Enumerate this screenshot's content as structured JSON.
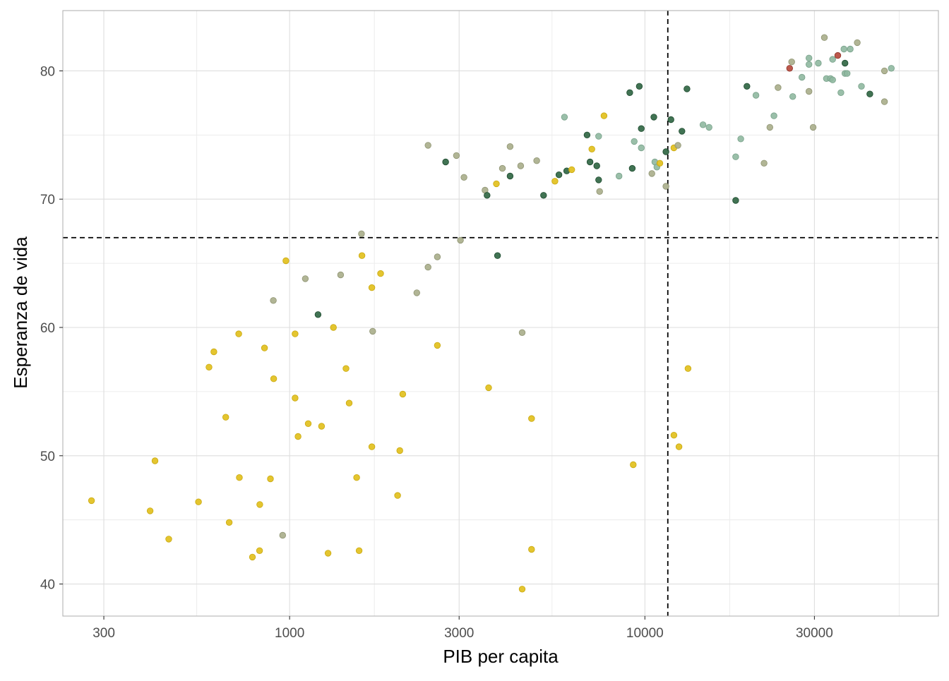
{
  "chart_data": {
    "type": "scatter",
    "xlabel": "PIB per capita",
    "ylabel": "Esperanza de vida",
    "x_scale": "log10",
    "xlim": [
      230,
      67000
    ],
    "ylim": [
      37.5,
      84.7
    ],
    "x_ticks": [
      300,
      1000,
      3000,
      10000,
      30000
    ],
    "x_tick_labels": [
      "300",
      "1000",
      "3000",
      "10000",
      "30000"
    ],
    "y_ticks": [
      40,
      50,
      60,
      70,
      80
    ],
    "y_tick_labels": [
      "40",
      "50",
      "60",
      "70",
      "80"
    ],
    "grid": true,
    "reference_lines": {
      "x": 11600,
      "y": 67.0
    },
    "colors": {
      "gold": "#e1bf18",
      "olive": "#a8ad8a",
      "sage": "#8fb8a0",
      "dark": "#2c6440",
      "red": "#b5473a"
    },
    "points": [
      {
        "x": 277,
        "y": 46.5,
        "c": "gold"
      },
      {
        "x": 405,
        "y": 45.7,
        "c": "gold"
      },
      {
        "x": 418,
        "y": 49.6,
        "c": "gold"
      },
      {
        "x": 457,
        "y": 43.5,
        "c": "gold"
      },
      {
        "x": 554,
        "y": 46.4,
        "c": "gold"
      },
      {
        "x": 593,
        "y": 56.9,
        "c": "gold"
      },
      {
        "x": 612,
        "y": 58.1,
        "c": "gold"
      },
      {
        "x": 661,
        "y": 53.0,
        "c": "gold"
      },
      {
        "x": 676,
        "y": 44.8,
        "c": "gold"
      },
      {
        "x": 719,
        "y": 59.5,
        "c": "gold"
      },
      {
        "x": 722,
        "y": 48.3,
        "c": "gold"
      },
      {
        "x": 786,
        "y": 42.1,
        "c": "gold"
      },
      {
        "x": 823,
        "y": 42.6,
        "c": "gold"
      },
      {
        "x": 824,
        "y": 46.2,
        "c": "gold"
      },
      {
        "x": 850,
        "y": 58.4,
        "c": "gold"
      },
      {
        "x": 883,
        "y": 48.2,
        "c": "gold"
      },
      {
        "x": 902,
        "y": 56.0,
        "c": "gold"
      },
      {
        "x": 900,
        "y": 62.1,
        "c": "olive"
      },
      {
        "x": 956,
        "y": 43.8,
        "c": "olive"
      },
      {
        "x": 976,
        "y": 65.2,
        "c": "gold"
      },
      {
        "x": 1036,
        "y": 59.5,
        "c": "gold"
      },
      {
        "x": 1036,
        "y": 54.5,
        "c": "gold"
      },
      {
        "x": 1056,
        "y": 51.5,
        "c": "gold"
      },
      {
        "x": 1107,
        "y": 63.8,
        "c": "olive"
      },
      {
        "x": 1128,
        "y": 52.5,
        "c": "gold"
      },
      {
        "x": 1202,
        "y": 61.0,
        "c": "dark"
      },
      {
        "x": 1230,
        "y": 52.3,
        "c": "gold"
      },
      {
        "x": 1283,
        "y": 42.4,
        "c": "gold"
      },
      {
        "x": 1328,
        "y": 60.0,
        "c": "gold"
      },
      {
        "x": 1392,
        "y": 64.1,
        "c": "olive"
      },
      {
        "x": 1441,
        "y": 56.8,
        "c": "gold"
      },
      {
        "x": 1471,
        "y": 54.1,
        "c": "gold"
      },
      {
        "x": 1544,
        "y": 48.3,
        "c": "gold"
      },
      {
        "x": 1569,
        "y": 42.6,
        "c": "gold"
      },
      {
        "x": 1593,
        "y": 67.3,
        "c": "olive"
      },
      {
        "x": 1598,
        "y": 65.6,
        "c": "gold"
      },
      {
        "x": 1704,
        "y": 63.1,
        "c": "gold"
      },
      {
        "x": 1704,
        "y": 50.7,
        "c": "gold"
      },
      {
        "x": 1713,
        "y": 59.7,
        "c": "olive"
      },
      {
        "x": 1803,
        "y": 64.2,
        "c": "gold"
      },
      {
        "x": 2013,
        "y": 46.9,
        "c": "gold"
      },
      {
        "x": 2042,
        "y": 50.4,
        "c": "gold"
      },
      {
        "x": 2082,
        "y": 54.8,
        "c": "gold"
      },
      {
        "x": 2280,
        "y": 62.7,
        "c": "olive"
      },
      {
        "x": 2452,
        "y": 74.2,
        "c": "olive"
      },
      {
        "x": 2452,
        "y": 64.7,
        "c": "olive"
      },
      {
        "x": 2605,
        "y": 65.5,
        "c": "olive"
      },
      {
        "x": 2605,
        "y": 58.6,
        "c": "gold"
      },
      {
        "x": 2749,
        "y": 72.9,
        "c": "dark"
      },
      {
        "x": 2948,
        "y": 73.4,
        "c": "olive"
      },
      {
        "x": 3025,
        "y": 66.8,
        "c": "olive"
      },
      {
        "x": 3095,
        "y": 71.7,
        "c": "olive"
      },
      {
        "x": 3548,
        "y": 70.7,
        "c": "olive"
      },
      {
        "x": 3596,
        "y": 70.3,
        "c": "dark"
      },
      {
        "x": 3632,
        "y": 55.3,
        "c": "gold"
      },
      {
        "x": 3820,
        "y": 71.2,
        "c": "gold"
      },
      {
        "x": 3848,
        "y": 65.6,
        "c": "dark"
      },
      {
        "x": 3970,
        "y": 72.4,
        "c": "olive"
      },
      {
        "x": 4173,
        "y": 71.8,
        "c": "dark"
      },
      {
        "x": 4173,
        "y": 74.1,
        "c": "olive"
      },
      {
        "x": 4471,
        "y": 72.6,
        "c": "olive"
      },
      {
        "x": 4513,
        "y": 39.6,
        "c": "gold"
      },
      {
        "x": 4513,
        "y": 59.6,
        "c": "olive"
      },
      {
        "x": 4797,
        "y": 52.9,
        "c": "gold"
      },
      {
        "x": 4797,
        "y": 42.7,
        "c": "gold"
      },
      {
        "x": 4959,
        "y": 73.0,
        "c": "olive"
      },
      {
        "x": 5186,
        "y": 70.3,
        "c": "dark"
      },
      {
        "x": 5581,
        "y": 71.4,
        "c": "gold"
      },
      {
        "x": 5728,
        "y": 71.9,
        "c": "dark"
      },
      {
        "x": 5938,
        "y": 76.4,
        "c": "sage"
      },
      {
        "x": 6025,
        "y": 72.2,
        "c": "dark"
      },
      {
        "x": 6223,
        "y": 72.3,
        "c": "gold"
      },
      {
        "x": 6873,
        "y": 75.0,
        "c": "dark"
      },
      {
        "x": 7006,
        "y": 72.9,
        "c": "dark"
      },
      {
        "x": 7092,
        "y": 73.9,
        "c": "gold"
      },
      {
        "x": 7320,
        "y": 72.6,
        "c": "dark"
      },
      {
        "x": 7408,
        "y": 74.9,
        "c": "sage"
      },
      {
        "x": 7408,
        "y": 71.5,
        "c": "dark"
      },
      {
        "x": 7458,
        "y": 70.6,
        "c": "olive"
      },
      {
        "x": 7670,
        "y": 76.5,
        "c": "gold"
      },
      {
        "x": 8458,
        "y": 71.8,
        "c": "sage"
      },
      {
        "x": 9065,
        "y": 78.3,
        "c": "dark"
      },
      {
        "x": 9210,
        "y": 72.4,
        "c": "dark"
      },
      {
        "x": 9269,
        "y": 49.3,
        "c": "gold"
      },
      {
        "x": 9331,
        "y": 74.5,
        "c": "sage"
      },
      {
        "x": 9645,
        "y": 78.8,
        "c": "dark"
      },
      {
        "x": 9769,
        "y": 75.5,
        "c": "dark"
      },
      {
        "x": 9769,
        "y": 74.0,
        "c": "sage"
      },
      {
        "x": 10461,
        "y": 72.0,
        "c": "olive"
      },
      {
        "x": 10597,
        "y": 76.4,
        "c": "dark"
      },
      {
        "x": 10667,
        "y": 72.9,
        "c": "sage"
      },
      {
        "x": 10806,
        "y": 72.5,
        "c": "sage"
      },
      {
        "x": 11018,
        "y": 72.8,
        "c": "gold"
      },
      {
        "x": 11458,
        "y": 73.7,
        "c": "dark"
      },
      {
        "x": 11458,
        "y": 71.0,
        "c": "olive"
      },
      {
        "x": 11835,
        "y": 76.2,
        "c": "dark"
      },
      {
        "x": 12068,
        "y": 74.0,
        "c": "gold"
      },
      {
        "x": 12068,
        "y": 51.6,
        "c": "gold"
      },
      {
        "x": 12387,
        "y": 74.2,
        "c": "olive"
      },
      {
        "x": 12469,
        "y": 50.7,
        "c": "gold"
      },
      {
        "x": 12715,
        "y": 75.3,
        "c": "dark"
      },
      {
        "x": 13135,
        "y": 78.6,
        "c": "dark"
      },
      {
        "x": 13222,
        "y": 56.8,
        "c": "gold"
      },
      {
        "x": 14570,
        "y": 75.8,
        "c": "sage"
      },
      {
        "x": 15155,
        "y": 75.6,
        "c": "sage"
      },
      {
        "x": 18009,
        "y": 73.3,
        "c": "sage"
      },
      {
        "x": 18009,
        "y": 69.9,
        "c": "dark"
      },
      {
        "x": 18615,
        "y": 74.7,
        "c": "sage"
      },
      {
        "x": 19365,
        "y": 78.8,
        "c": "dark"
      },
      {
        "x": 20537,
        "y": 78.1,
        "c": "sage"
      },
      {
        "x": 21645,
        "y": 72.8,
        "c": "olive"
      },
      {
        "x": 22478,
        "y": 75.6,
        "c": "olive"
      },
      {
        "x": 23079,
        "y": 76.5,
        "c": "sage"
      },
      {
        "x": 23695,
        "y": 78.7,
        "c": "olive"
      },
      {
        "x": 25549,
        "y": 80.2,
        "c": "red"
      },
      {
        "x": 25890,
        "y": 80.7,
        "c": "olive"
      },
      {
        "x": 26066,
        "y": 78.0,
        "c": "sage"
      },
      {
        "x": 27659,
        "y": 79.5,
        "c": "sage"
      },
      {
        "x": 28965,
        "y": 80.5,
        "c": "sage"
      },
      {
        "x": 28965,
        "y": 81.0,
        "c": "sage"
      },
      {
        "x": 28965,
        "y": 78.4,
        "c": "olive"
      },
      {
        "x": 29754,
        "y": 75.6,
        "c": "olive"
      },
      {
        "x": 30764,
        "y": 80.6,
        "c": "sage"
      },
      {
        "x": 31997,
        "y": 82.6,
        "c": "olive"
      },
      {
        "x": 32429,
        "y": 79.4,
        "c": "sage"
      },
      {
        "x": 33303,
        "y": 79.4,
        "c": "sage"
      },
      {
        "x": 33752,
        "y": 79.3,
        "c": "sage"
      },
      {
        "x": 33752,
        "y": 80.9,
        "c": "sage"
      },
      {
        "x": 34899,
        "y": 81.2,
        "c": "red"
      },
      {
        "x": 35609,
        "y": 78.3,
        "c": "sage"
      },
      {
        "x": 36329,
        "y": 81.7,
        "c": "sage"
      },
      {
        "x": 36574,
        "y": 79.8,
        "c": "sage"
      },
      {
        "x": 36574,
        "y": 80.6,
        "c": "dark"
      },
      {
        "x": 37079,
        "y": 79.8,
        "c": "sage"
      },
      {
        "x": 37827,
        "y": 81.7,
        "c": "sage"
      },
      {
        "x": 39595,
        "y": 82.2,
        "c": "olive"
      },
      {
        "x": 40678,
        "y": 78.8,
        "c": "sage"
      },
      {
        "x": 42954,
        "y": 78.2,
        "c": "dark"
      },
      {
        "x": 47241,
        "y": 80.0,
        "c": "olive"
      },
      {
        "x": 47241,
        "y": 77.6,
        "c": "olive"
      },
      {
        "x": 49378,
        "y": 80.2,
        "c": "sage"
      }
    ]
  }
}
